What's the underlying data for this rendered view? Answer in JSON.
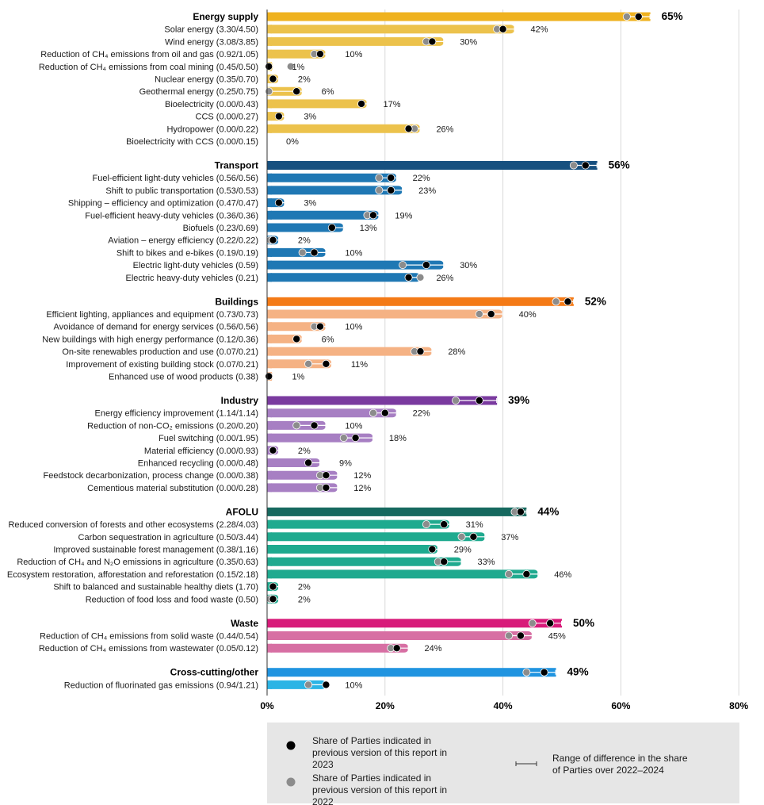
{
  "chart_data": {
    "type": "bar",
    "orientation": "horizontal",
    "xlim": [
      0,
      80
    ],
    "x_ticks": [
      "0%",
      "20%",
      "40%",
      "60%",
      "80%"
    ],
    "grid": "vertical",
    "legend": {
      "placement": "bottom",
      "items": [
        {
          "name": "Share of Parties indicated in previous version of this report in 2023",
          "marker": "black-dot"
        },
        {
          "name": "Share of Parties indicated in previous version of this report in 2022",
          "marker": "grey-dot"
        },
        {
          "name": "Range of difference in the share of Parties over 2022–2024",
          "marker": "range-line"
        }
      ]
    },
    "groups": [
      {
        "name": "Energy supply",
        "color": "#efb21f",
        "sub_color": "#ecc24c",
        "value": 65,
        "label": "65%",
        "prev2023": 63,
        "prev2022": 61,
        "items": [
          {
            "name": "Solar energy (3.30/4.50)",
            "value": 42,
            "label": "42%",
            "prev2023": 40,
            "prev2022": 39
          },
          {
            "name": "Wind energy (3.08/3.85)",
            "value": 30,
            "label": "30%",
            "prev2023": 28,
            "prev2022": 27
          },
          {
            "name": "Reduction of CH₄ emissions from oil and gas (0.92/1.05)",
            "value": 10,
            "label": "10%",
            "prev2023": 9,
            "prev2022": 8
          },
          {
            "name": "Reduction of CH₄ emissions from coal mining (0.45/0.50)",
            "value": 1,
            "label": "1%",
            "prev2023": 0.3,
            "prev2022": 4
          },
          {
            "name": "Nuclear energy (0.35/0.70)",
            "value": 2,
            "label": "2%",
            "prev2023": 1,
            "prev2022": null
          },
          {
            "name": "Geothermal energy (0.25/0.75)",
            "value": 6,
            "label": "6%",
            "prev2023": 5,
            "prev2022": 0.3
          },
          {
            "name": "Bioelectricity (0.00/0.43)",
            "value": 17,
            "label": "17%",
            "prev2023": 16,
            "prev2022": null
          },
          {
            "name": "CCS (0.00/0.27)",
            "value": 3,
            "label": "3%",
            "prev2023": 2,
            "prev2022": null
          },
          {
            "name": "Hydropower (0.00/0.22)",
            "value": 26,
            "label": "26%",
            "prev2023": 24,
            "prev2022": 25
          },
          {
            "name": "Bioelectricity with CCS (0.00/0.15)",
            "value": 0,
            "label": "0%",
            "prev2023": null,
            "prev2022": null
          }
        ]
      },
      {
        "name": "Transport",
        "color": "#17507f",
        "sub_color": "#1f78b4",
        "value": 56,
        "label": "56%",
        "prev2023": 54,
        "prev2022": 52,
        "items": [
          {
            "name": "Fuel-efficient light-duty vehicles (0.56/0.56)",
            "value": 22,
            "label": "22%",
            "prev2023": 21,
            "prev2022": 19
          },
          {
            "name": "Shift to public transportation (0.53/0.53)",
            "value": 23,
            "label": "23%",
            "prev2023": 21,
            "prev2022": 19
          },
          {
            "name": "Shipping – efficiency and optimization (0.47/0.47)",
            "value": 3,
            "label": "3%",
            "prev2023": 2,
            "prev2022": null
          },
          {
            "name": "Fuel-efficient heavy-duty vehicles (0.36/0.36)",
            "value": 19,
            "label": "19%",
            "prev2023": 18,
            "prev2022": 17
          },
          {
            "name": "Biofuels (0.23/0.69)",
            "value": 13,
            "label": "13%",
            "prev2023": 11,
            "prev2022": null
          },
          {
            "name": "Aviation – energy efficiency (0.22/0.22)",
            "value": 2,
            "label": "2%",
            "prev2023": 1,
            "prev2022": 0.5
          },
          {
            "name": "Shift to bikes and e-bikes (0.19/0.19)",
            "value": 10,
            "label": "10%",
            "prev2023": 8,
            "prev2022": 6
          },
          {
            "name": "Electric light-duty vehicles (0.59)",
            "value": 30,
            "label": "30%",
            "prev2023": 27,
            "prev2022": 23
          },
          {
            "name": "Electric heavy-duty vehicles (0.21)",
            "value": 26,
            "label": "26%",
            "prev2023": 24,
            "prev2022": 26
          }
        ]
      },
      {
        "name": "Buildings",
        "color": "#f47a16",
        "sub_color": "#f5b284",
        "value": 52,
        "label": "52%",
        "prev2023": 51,
        "prev2022": 49,
        "items": [
          {
            "name": "Efficient lighting, appliances and equipment (0.73/0.73)",
            "value": 40,
            "label": "40%",
            "prev2023": 38,
            "prev2022": 36
          },
          {
            "name": "Avoidance of demand for energy services (0.56/0.56)",
            "value": 10,
            "label": "10%",
            "prev2023": 9,
            "prev2022": 8
          },
          {
            "name": "New buildings with high energy performance (0.12/0.36)",
            "value": 6,
            "label": "6%",
            "prev2023": 5,
            "prev2022": null
          },
          {
            "name": "On-site renewables production and use (0.07/0.21)",
            "value": 28,
            "label": "28%",
            "prev2023": 26,
            "prev2022": 25
          },
          {
            "name": "Improvement of existing building stock (0.07/0.21)",
            "value": 11,
            "label": "11%",
            "prev2023": 10,
            "prev2022": 7
          },
          {
            "name": "Enhanced use of wood products (0.38)",
            "value": 1,
            "label": "1%",
            "prev2023": 0.3,
            "prev2022": null
          }
        ]
      },
      {
        "name": "Industry",
        "color": "#7a3a9f",
        "sub_color": "#a77fc3",
        "value": 39,
        "label": "39%",
        "prev2023": 36,
        "prev2022": 32,
        "items": [
          {
            "name": "Energy efficiency improvement (1.14/1.14)",
            "value": 22,
            "label": "22%",
            "prev2023": 20,
            "prev2022": 18
          },
          {
            "name": "Reduction of non-CO₂ emissions (0.20/0.20)",
            "value": 10,
            "label": "10%",
            "prev2023": 8,
            "prev2022": 5
          },
          {
            "name": "Fuel switching (0.00/1.95)",
            "value": 18,
            "label": "18%",
            "prev2023": 15,
            "prev2022": 13
          },
          {
            "name": "Material efficiency (0.00/0.93)",
            "value": 2,
            "label": "2%",
            "prev2023": 1,
            "prev2022": null
          },
          {
            "name": "Enhanced recycling (0.00/0.48)",
            "value": 9,
            "label": "9%",
            "prev2023": 7,
            "prev2022": null
          },
          {
            "name": "Feedstock decarbonization, process change (0.00/0.38)",
            "value": 12,
            "label": "12%",
            "prev2023": 10,
            "prev2022": 9
          },
          {
            "name": "Cementious material substitution (0.00/0.28)",
            "value": 12,
            "label": "12%",
            "prev2023": 10,
            "prev2022": 9
          }
        ]
      },
      {
        "name": "AFOLU",
        "color": "#16695f",
        "sub_color": "#1faa8f",
        "value": 44,
        "label": "44%",
        "prev2023": 43,
        "prev2022": 42,
        "items": [
          {
            "name": "Reduced conversion of forests and other ecosystems (2.28/4.03)",
            "value": 31,
            "label": "31%",
            "prev2023": 30,
            "prev2022": 27
          },
          {
            "name": "Carbon sequestration in agriculture (0.50/3.44)",
            "value": 37,
            "label": "37%",
            "prev2023": 35,
            "prev2022": 33
          },
          {
            "name": "Improved sustainable forest management (0.38/1.16)",
            "value": 29,
            "label": "29%",
            "prev2023": 28,
            "prev2022": null
          },
          {
            "name": "Reduction of CH₄ and N₂O emissions in agriculture (0.35/0.63)",
            "value": 33,
            "label": "33%",
            "prev2023": 30,
            "prev2022": 29
          },
          {
            "name": "Ecosystem restoration, afforestation and reforestation (0.15/2.18)",
            "value": 46,
            "label": "46%",
            "prev2023": 44,
            "prev2022": 41
          },
          {
            "name": "Shift to balanced and sustainable healthy diets (1.70)",
            "value": 2,
            "label": "2%",
            "prev2023": 1,
            "prev2022": null
          },
          {
            "name": "Reduction of food loss and food waste (0.50)",
            "value": 2,
            "label": "2%",
            "prev2023": 1,
            "prev2022": 0.5
          }
        ]
      },
      {
        "name": "Waste",
        "color": "#d81b7a",
        "sub_color": "#d76fa3",
        "value": 50,
        "label": "50%",
        "prev2023": 48,
        "prev2022": 45,
        "items": [
          {
            "name": "Reduction of CH₄ emissions from solid waste (0.44/0.54)",
            "value": 45,
            "label": "45%",
            "prev2023": 43,
            "prev2022": 41
          },
          {
            "name": "Reduction of CH₄ emissions from wastewater (0.05/0.12)",
            "value": 24,
            "label": "24%",
            "prev2023": 22,
            "prev2022": 21
          }
        ]
      },
      {
        "name": "Cross-cutting/other",
        "color": "#2094e0",
        "sub_color": "#2bb4e5",
        "value": 49,
        "label": "49%",
        "prev2023": 47,
        "prev2022": 44,
        "items": [
          {
            "name": "Reduction of fluorinated gas emissions (0.94/1.21)",
            "value": 10,
            "label": "10%",
            "prev2023": 10,
            "prev2022": 7
          }
        ]
      }
    ]
  }
}
